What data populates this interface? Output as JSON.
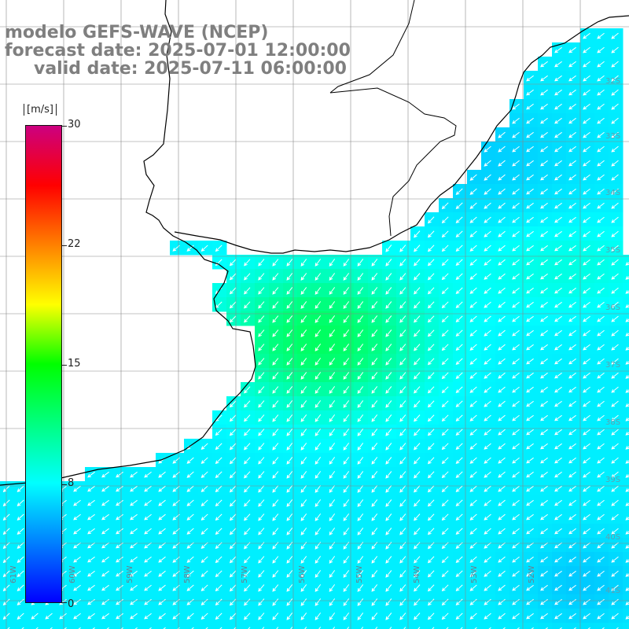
{
  "titles": {
    "line1": "modelo GEFS-WAVE (NCEP)",
    "line2": "forecast date: 2025-07-01 12:00:00",
    "line3": "valid date: 2025-07-11 06:00:00"
  },
  "colorbar": {
    "unit": "[m/s]",
    "ticks": [
      "30",
      "22",
      "15",
      "8",
      "0"
    ],
    "colors": [
      "#0000ff",
      "#0080ff",
      "#00ffff",
      "#00ff80",
      "#00ff00",
      "#ffff00",
      "#ff8000",
      "#ff0000",
      "#cc0080"
    ]
  },
  "axes": {
    "lon_labels": [
      "61W",
      "60W",
      "59W",
      "58W",
      "57W",
      "56W",
      "55W",
      "54W",
      "53W",
      "52W"
    ],
    "lat_labels": [
      "32S",
      "33S",
      "34S",
      "35S",
      "36S",
      "37S",
      "38S",
      "39S",
      "40S",
      "41S",
      "42S"
    ]
  },
  "field": {
    "variable": "wind speed",
    "direction": "southwest",
    "range": [
      0,
      30
    ],
    "typical_speed": 8,
    "max_region_speed": 12
  },
  "colors": {
    "land": "#ffffff",
    "coast": "#000000",
    "grid": "#888888",
    "arrow": "#ffffff",
    "title": "#7f7f7f"
  }
}
